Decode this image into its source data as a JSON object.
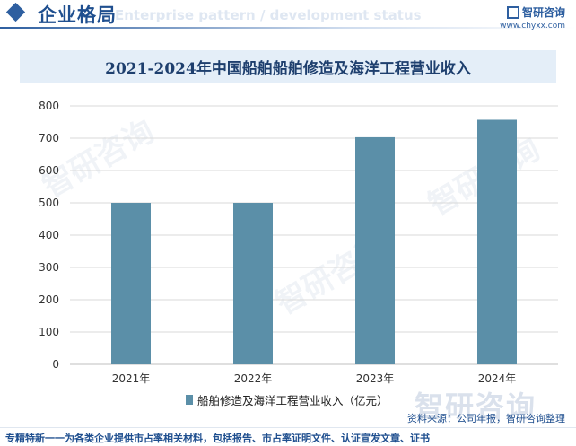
{
  "header": {
    "title": "企业格局",
    "subtitle": "Enterprise pattern / development status",
    "logo_name": "智研咨询",
    "logo_url": "www.chyxx.com"
  },
  "chart_data": {
    "type": "bar",
    "title": "2021-2024年中国船舶船舶修造及海洋工程营业收入",
    "categories": [
      "2021年",
      "2022年",
      "2023年",
      "2024年"
    ],
    "series": [
      {
        "name": "船舶修造及海洋工程营业收入（亿元）",
        "values": [
          500,
          500,
          703,
          757
        ]
      }
    ],
    "yticks": [
      0,
      100,
      200,
      300,
      400,
      500,
      600,
      700,
      800
    ],
    "ylim": [
      0,
      800
    ],
    "grid": true,
    "legend": "bottom",
    "bar_color": "#5b8fa8"
  },
  "source": "资料来源：公司年报，智研咨询整理",
  "footer": "专精特新一一为各类企业提供市占率相关材料，包括报告、市占率证明文件、认证宣发文章、证书",
  "watermark": "智研咨询"
}
